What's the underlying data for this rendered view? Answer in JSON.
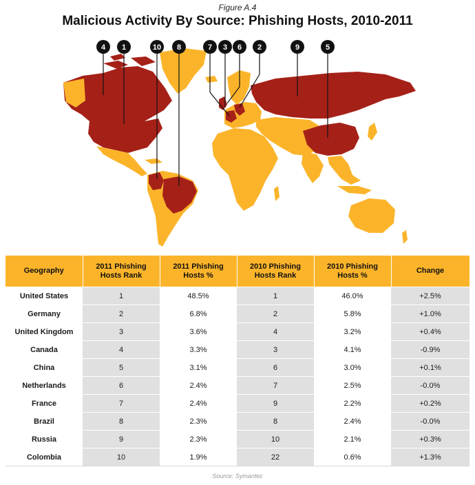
{
  "figure_label": "Figure A.4",
  "title": "Malicious Activity By Source: Phishing Hosts, 2010-2011",
  "colors": {
    "land": "#fbb42a",
    "highlight": "#a52118",
    "header": "#fbb42a",
    "shade": "#e0e0e0"
  },
  "map_markers": [
    "4",
    "1",
    "10",
    "8",
    "7",
    "3",
    "6",
    "2",
    "9",
    "5"
  ],
  "table": {
    "headers": [
      "Geography",
      "2011 Phishing Hosts Rank",
      "2011 Phishing Hosts %",
      "2010 Phishing Hosts Rank",
      "2010 Phishing Hosts %",
      "Change"
    ],
    "rows": [
      [
        "United States",
        "1",
        "48.5%",
        "1",
        "46.0%",
        "+2.5%"
      ],
      [
        "Germany",
        "2",
        "6.8%",
        "2",
        "5.8%",
        "+1.0%"
      ],
      [
        "United Kingdom",
        "3",
        "3.6%",
        "4",
        "3.2%",
        "+0.4%"
      ],
      [
        "Canada",
        "4",
        "3.3%",
        "3",
        "4.1%",
        "-0.9%"
      ],
      [
        "China",
        "5",
        "3.1%",
        "6",
        "3.0%",
        "+0.1%"
      ],
      [
        "Netherlands",
        "6",
        "2.4%",
        "7",
        "2.5%",
        "-0.0%"
      ],
      [
        "France",
        "7",
        "2.4%",
        "9",
        "2.2%",
        "+0.2%"
      ],
      [
        "Brazil",
        "8",
        "2.3%",
        "8",
        "2.4%",
        "-0.0%"
      ],
      [
        "Russia",
        "9",
        "2.3%",
        "10",
        "2.1%",
        "+0.3%"
      ],
      [
        "Colombia",
        "10",
        "1.9%",
        "22",
        "0.6%",
        "+1.3%"
      ]
    ]
  },
  "source": "Source: Symantec"
}
